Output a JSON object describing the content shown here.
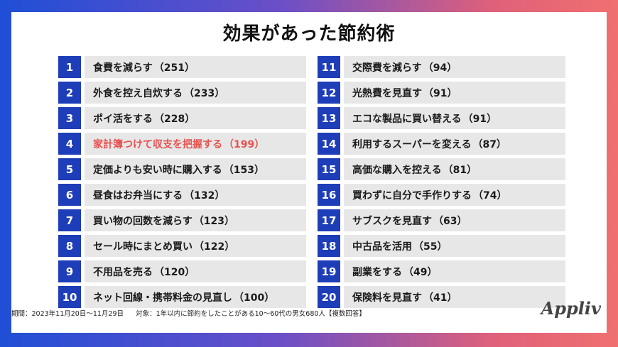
{
  "title": "効果があった節約術",
  "footer": {
    "period": "期間：2023年11月20日〜11月29日",
    "target": "対象：1年以内に節約をしたことがある10〜60代の男女680人【複数回答】"
  },
  "logo": "Appliv",
  "colors": {
    "number_badge": "#1e3db8",
    "row_background": "#e7e7e7",
    "highlight_text": "#e8514f",
    "frame_left": "#1f4fd6",
    "frame_right": "#f07070"
  },
  "chart_data": {
    "type": "table",
    "title": "効果があった節約術",
    "highlight_rank": 4,
    "rows": [
      {
        "rank": "1",
        "label": "食費を減らす",
        "count": "（251）",
        "value": 251
      },
      {
        "rank": "2",
        "label": "外食を控え自炊する",
        "count": "（233）",
        "value": 233
      },
      {
        "rank": "3",
        "label": "ポイ活をする",
        "count": "（228）",
        "value": 228
      },
      {
        "rank": "4",
        "label": "家計簿つけて収支を把握する",
        "count": "（199）",
        "value": 199
      },
      {
        "rank": "5",
        "label": "定価よりも安い時に購入する",
        "count": "（153）",
        "value": 153
      },
      {
        "rank": "6",
        "label": "昼食はお弁当にする",
        "count": "（132）",
        "value": 132
      },
      {
        "rank": "7",
        "label": "買い物の回数を減らす",
        "count": "（123）",
        "value": 123
      },
      {
        "rank": "8",
        "label": "セール時にまとめ買い",
        "count": "（122）",
        "value": 122
      },
      {
        "rank": "9",
        "label": "不用品を売る",
        "count": "（120）",
        "value": 120
      },
      {
        "rank": "10",
        "label": "ネット回線・携帯料金の見直し",
        "count": "（100）",
        "value": 100
      },
      {
        "rank": "11",
        "label": "交際費を減らす",
        "count": "（94）",
        "value": 94
      },
      {
        "rank": "12",
        "label": "光熱費を見直す",
        "count": "（91）",
        "value": 91
      },
      {
        "rank": "13",
        "label": "エコな製品に買い替える",
        "count": "（91）",
        "value": 91
      },
      {
        "rank": "14",
        "label": "利用するスーパーを変える",
        "count": "（87）",
        "value": 87
      },
      {
        "rank": "15",
        "label": "高価な購入を控える",
        "count": "（81）",
        "value": 81
      },
      {
        "rank": "16",
        "label": "買わずに自分で手作りする",
        "count": "（74）",
        "value": 74
      },
      {
        "rank": "17",
        "label": "サブスクを見直す",
        "count": "（63）",
        "value": 63
      },
      {
        "rank": "18",
        "label": "中古品を活用",
        "count": "（55）",
        "value": 55
      },
      {
        "rank": "19",
        "label": "副業をする",
        "count": "（49）",
        "value": 49
      },
      {
        "rank": "20",
        "label": "保険料を見直す",
        "count": "（41）",
        "value": 41
      }
    ]
  }
}
